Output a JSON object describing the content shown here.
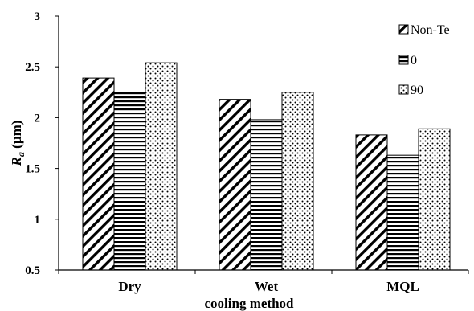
{
  "chart_data": {
    "type": "bar",
    "categories": [
      "Dry",
      "Wet",
      "MQL"
    ],
    "series": [
      {
        "name": "Non-Te",
        "values": [
          2.39,
          2.18,
          1.83
        ],
        "pattern": "diagonal-hatch"
      },
      {
        "name": "0",
        "values": [
          2.25,
          1.98,
          1.63
        ],
        "pattern": "horizontal-lines"
      },
      {
        "name": "90",
        "values": [
          2.54,
          2.25,
          1.89
        ],
        "pattern": "dots"
      }
    ],
    "xlabel": "cooling method",
    "ylabel_main": "R",
    "ylabel_sub": "a",
    "ylabel_unit": " (µm)",
    "ylim": [
      0.5,
      3
    ],
    "yticks": [
      "0.5",
      "1",
      "1.5",
      "2",
      "2.5",
      "3"
    ],
    "ytick_values": [
      0.5,
      1,
      1.5,
      2,
      2.5,
      3
    ],
    "legend_position": "top-right",
    "grid": false
  }
}
